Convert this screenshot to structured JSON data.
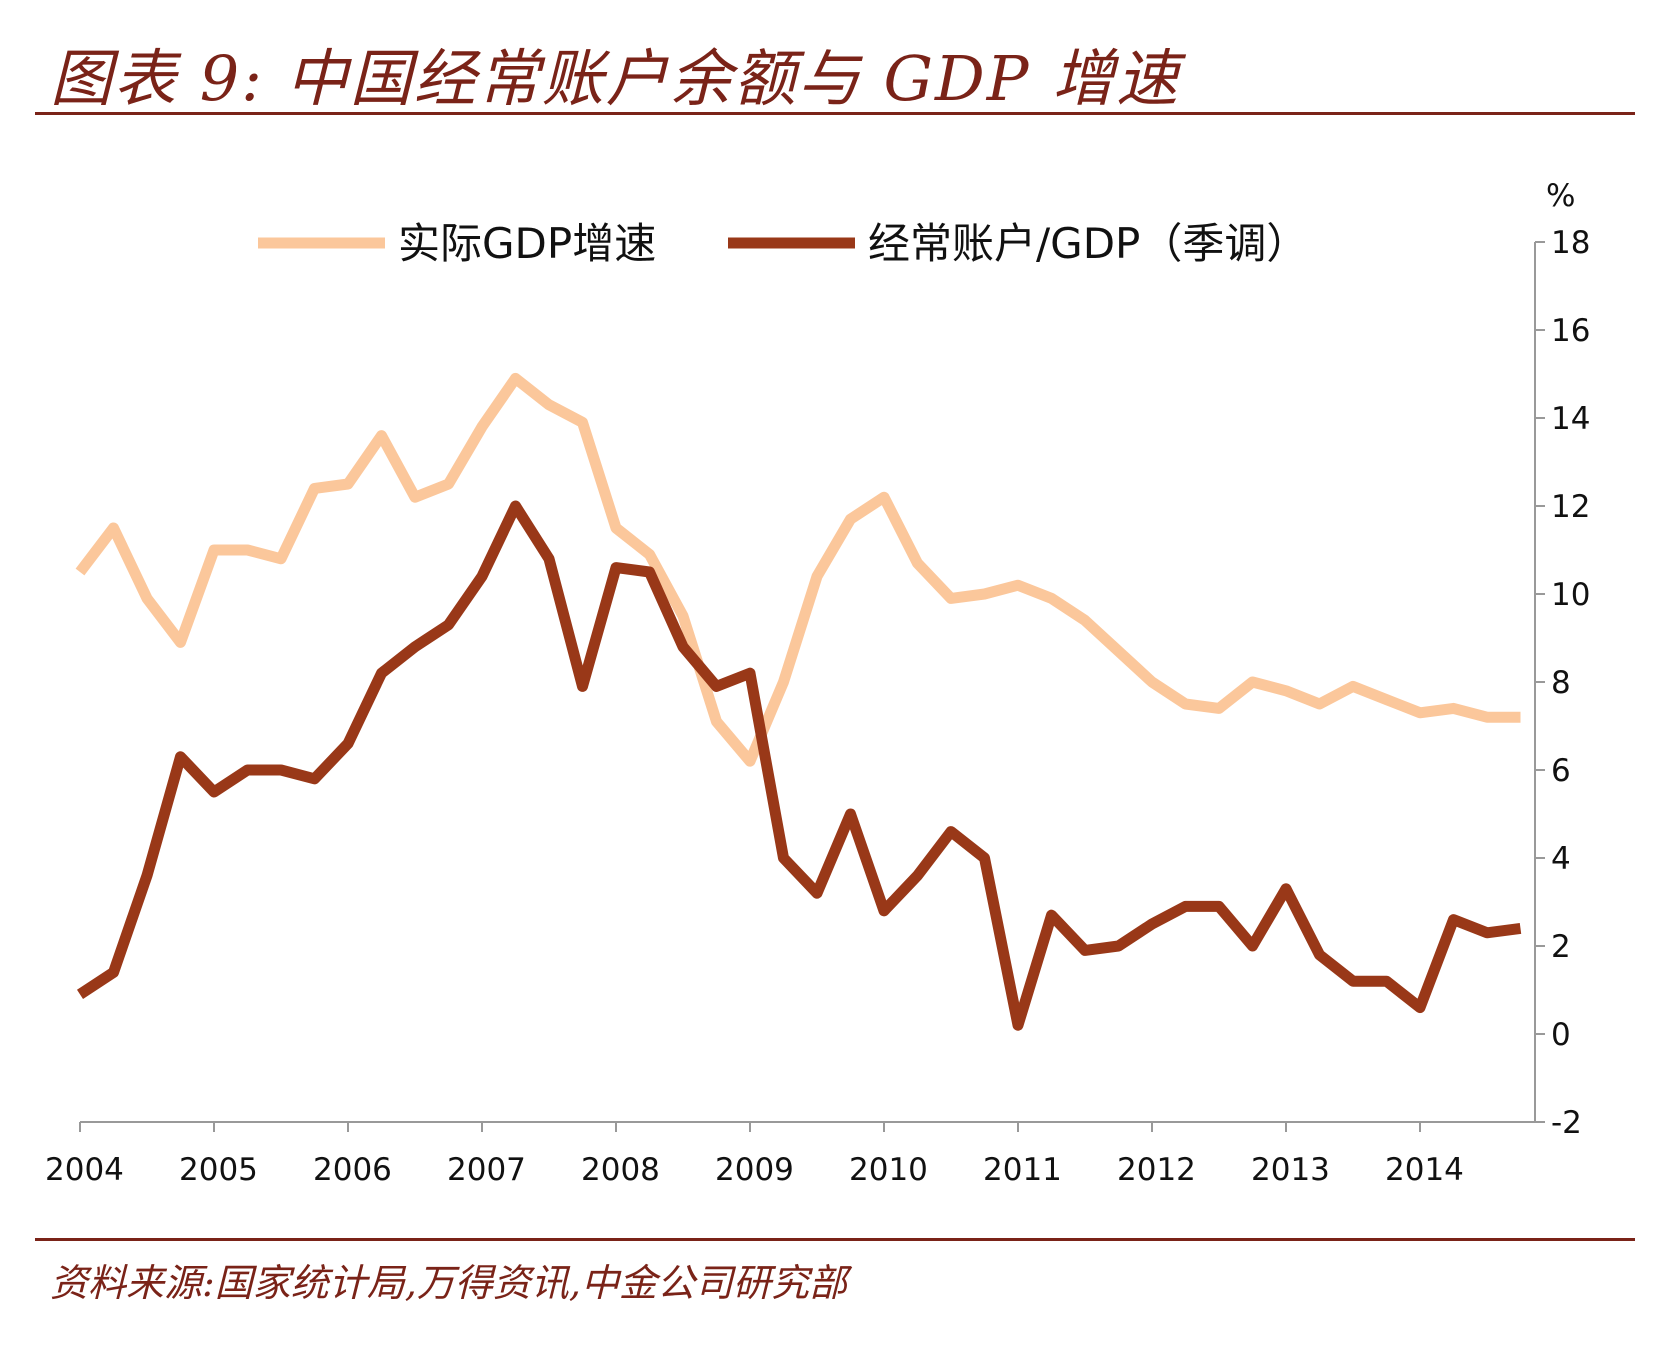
{
  "header": {
    "title": "图表 9:  中国经常账户余额与 GDP 增速"
  },
  "footer": {
    "source": "资料来源:国家统计局,万得资讯,中金公司研究部"
  },
  "colors": {
    "accent": "#7a2318",
    "gdp": "#fbc79b",
    "ca": "#993818",
    "axis": "#999999"
  },
  "chart_data": {
    "type": "line",
    "title": "中国经常账户余额与 GDP 增速",
    "unit_label": "%",
    "ylim": [
      -2,
      18
    ],
    "y_ticks": [
      "-2",
      "0",
      "2",
      "4",
      "6",
      "8",
      "10",
      "12",
      "14",
      "16",
      "18"
    ],
    "x_tick_labels": [
      "2004",
      "2005",
      "2006",
      "2007",
      "2008",
      "2009",
      "2010",
      "2011",
      "2012",
      "2013",
      "2014"
    ],
    "x_start": 2004.0,
    "x_step": 0.25,
    "legend": {
      "position": "top",
      "entries": [
        "实际GDP增速",
        "经常账户/GDP（季调）"
      ]
    },
    "series": [
      {
        "name": "实际GDP增速",
        "values": [
          10.5,
          11.5,
          9.9,
          8.9,
          11.0,
          11.0,
          10.8,
          12.4,
          12.5,
          13.6,
          12.2,
          12.5,
          13.8,
          14.9,
          14.3,
          13.9,
          11.5,
          10.9,
          9.5,
          7.1,
          6.2,
          8.0,
          10.4,
          11.7,
          12.2,
          10.7,
          9.9,
          10.0,
          10.2,
          9.9,
          9.4,
          8.7,
          8.0,
          7.5,
          7.4,
          8.0,
          7.8,
          7.5,
          7.9,
          7.6,
          7.3,
          7.4,
          7.2,
          7.2
        ]
      },
      {
        "name": "经常账户/GDP（季调）",
        "values": [
          0.9,
          1.4,
          3.6,
          6.3,
          5.5,
          6.0,
          6.0,
          5.8,
          6.6,
          8.2,
          8.8,
          9.3,
          10.4,
          12.0,
          10.8,
          7.9,
          10.6,
          10.5,
          8.8,
          7.9,
          8.2,
          4.0,
          3.2,
          5.0,
          2.8,
          3.6,
          4.6,
          4.0,
          0.2,
          2.7,
          1.9,
          2.0,
          2.5,
          2.9,
          2.9,
          2.0,
          3.3,
          1.8,
          1.2,
          1.2,
          0.6,
          2.6,
          2.3,
          2.4
        ]
      }
    ]
  }
}
